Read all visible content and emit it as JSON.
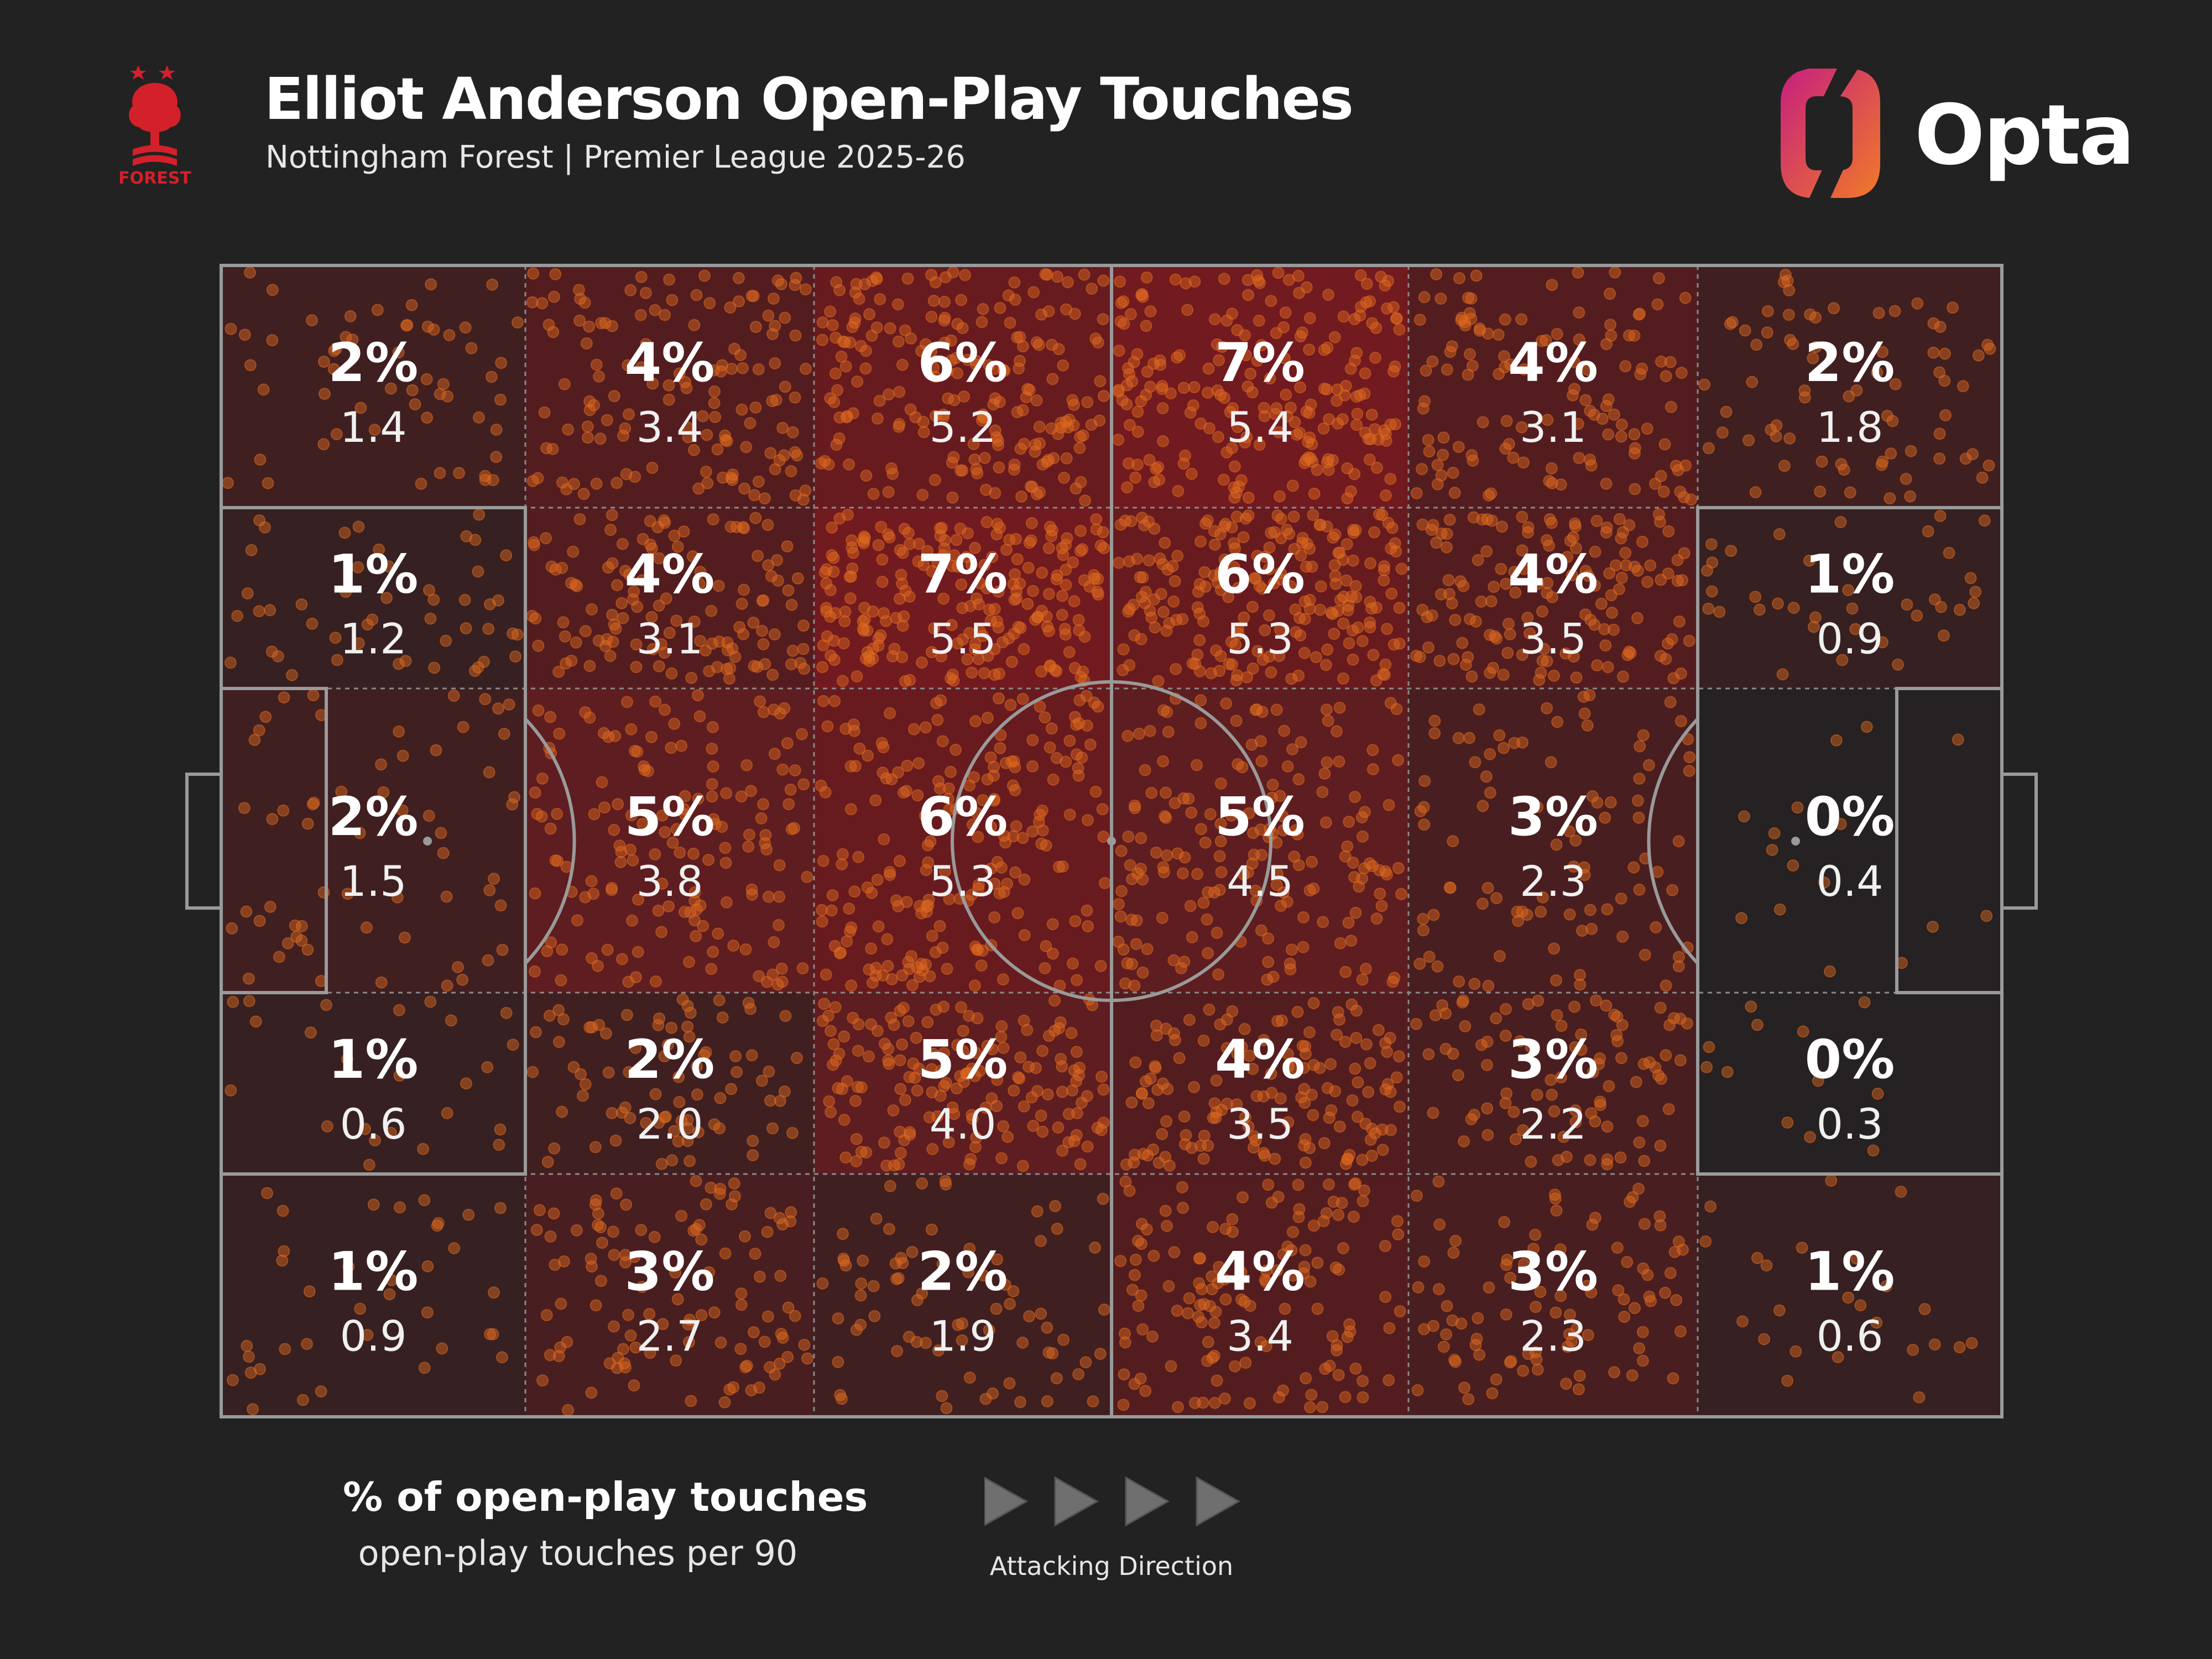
{
  "header": {
    "title": "Elliot Anderson Open-Play Touches",
    "subtitle": "Nottingham Forest | Premier League 2025-26",
    "crest_text": "FOREST",
    "brand": "Opta"
  },
  "legend": {
    "main": "% of open-play touches",
    "sub": "open-play touches per 90",
    "direction_label": "Attacking Direction"
  },
  "colors": {
    "background": "#222222",
    "heat_max": "#7a1a1f",
    "dot": "#e06a1e",
    "lines": "#9a9a9a",
    "crest": "#d4202a",
    "opta_gradient": [
      "#c61f7e",
      "#f07a28"
    ]
  },
  "chart_data": {
    "type": "heatmap",
    "title": "Elliot Anderson Open-Play Touches",
    "subtitle": "Nottingham Forest | Premier League 2025-26",
    "columns": 6,
    "rows": 5,
    "attacking_direction": "left-to-right",
    "cells": [
      [
        {
          "pct": "2%",
          "per90": "1.4"
        },
        {
          "pct": "4%",
          "per90": "3.4"
        },
        {
          "pct": "6%",
          "per90": "5.2"
        },
        {
          "pct": "7%",
          "per90": "5.4"
        },
        {
          "pct": "4%",
          "per90": "3.1"
        },
        {
          "pct": "2%",
          "per90": "1.8"
        }
      ],
      [
        {
          "pct": "1%",
          "per90": "1.2"
        },
        {
          "pct": "4%",
          "per90": "3.1"
        },
        {
          "pct": "7%",
          "per90": "5.5"
        },
        {
          "pct": "6%",
          "per90": "5.3"
        },
        {
          "pct": "4%",
          "per90": "3.5"
        },
        {
          "pct": "1%",
          "per90": "0.9"
        }
      ],
      [
        {
          "pct": "2%",
          "per90": "1.5"
        },
        {
          "pct": "5%",
          "per90": "3.8"
        },
        {
          "pct": "6%",
          "per90": "5.3"
        },
        {
          "pct": "5%",
          "per90": "4.5"
        },
        {
          "pct": "3%",
          "per90": "2.3"
        },
        {
          "pct": "0%",
          "per90": "0.4"
        }
      ],
      [
        {
          "pct": "1%",
          "per90": "0.6"
        },
        {
          "pct": "2%",
          "per90": "2.0"
        },
        {
          "pct": "5%",
          "per90": "4.0"
        },
        {
          "pct": "4%",
          "per90": "3.5"
        },
        {
          "pct": "3%",
          "per90": "2.2"
        },
        {
          "pct": "0%",
          "per90": "0.3"
        }
      ],
      [
        {
          "pct": "1%",
          "per90": "0.9"
        },
        {
          "pct": "3%",
          "per90": "2.7"
        },
        {
          "pct": "2%",
          "per90": "1.9"
        },
        {
          "pct": "4%",
          "per90": "3.4"
        },
        {
          "pct": "3%",
          "per90": "2.3"
        },
        {
          "pct": "1%",
          "per90": "0.6"
        }
      ]
    ]
  }
}
